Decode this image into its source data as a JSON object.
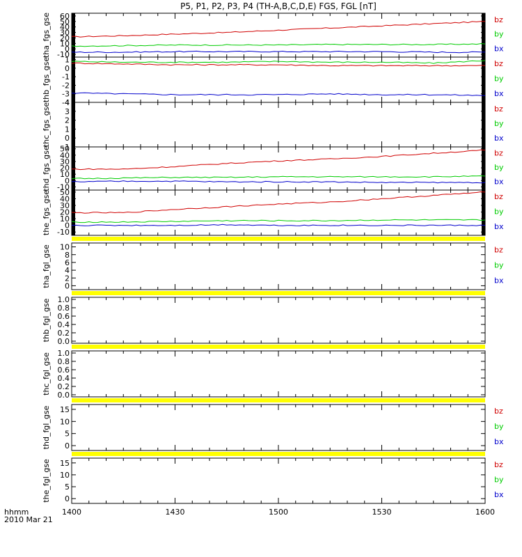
{
  "title": "P5, P1, P2, P3, P4 (TH-A,B,C,D,E) FGS, FGL [nT]",
  "time_axis": {
    "label_line1": "hhmm",
    "label_line2": "2010 Mar 21",
    "ticks": [
      "1400",
      "1430",
      "1500",
      "1530",
      "1600"
    ],
    "start": "14:00",
    "end": "16:00"
  },
  "colors": {
    "bz": "#d00000",
    "by": "#00cc00",
    "bx": "#0000cc",
    "gap_bar": "#ffff00",
    "frame": "#000000"
  },
  "chart_data": [
    {
      "type": "line",
      "panel": "tha_fgs_gse",
      "ylabel": "tha_fgs_gse",
      "ylim": [
        -15,
        65
      ],
      "yticks": [
        -10,
        0,
        10,
        20,
        30,
        40,
        50,
        60
      ],
      "x": [
        "14:00",
        "14:15",
        "14:30",
        "14:45",
        "15:00",
        "15:15",
        "15:30",
        "15:45",
        "16:00"
      ],
      "series": [
        {
          "name": "bz",
          "values": [
            22,
            24,
            27,
            30,
            34,
            38,
            42,
            46,
            50
          ]
        },
        {
          "name": "by",
          "values": [
            5,
            6,
            7,
            7,
            7,
            8,
            8,
            8,
            9
          ]
        },
        {
          "name": "bx",
          "values": [
            -6,
            -6,
            -5,
            -5,
            -5,
            -5,
            -5,
            -6,
            -6
          ]
        }
      ]
    },
    {
      "type": "line",
      "panel": "thb_fgs_gse",
      "ylabel": "thb_fgs_gse",
      "ylim": [
        -4,
        1.3
      ],
      "yticks": [
        -4,
        -3,
        -2,
        -1,
        0,
        1
      ],
      "x": [
        "14:00",
        "14:15",
        "14:30",
        "14:45",
        "15:00",
        "15:15",
        "15:30",
        "15:45",
        "16:00"
      ],
      "series": [
        {
          "name": "bz",
          "values": [
            0.6,
            0.5,
            0.4,
            0.4,
            0.4,
            0.3,
            0.3,
            0.3,
            0.3
          ]
        },
        {
          "name": "by",
          "values": [
            0.8,
            0.7,
            0.7,
            0.7,
            0.8,
            0.7,
            0.7,
            0.6,
            0.9
          ]
        },
        {
          "name": "bx",
          "values": [
            -2.9,
            -3.0,
            -3.1,
            -3.1,
            -3.1,
            -3.0,
            -3.1,
            -3.1,
            -3.2
          ]
        }
      ]
    },
    {
      "type": "line",
      "panel": "thc_fgs_gse",
      "ylabel": "thc_fgs_gse",
      "ylim": [
        -1,
        4
      ],
      "yticks": [
        -1,
        0,
        1,
        2,
        3,
        4
      ],
      "x": [],
      "series": [
        {
          "name": "bz",
          "values": []
        },
        {
          "name": "by",
          "values": []
        },
        {
          "name": "bx",
          "values": []
        }
      ]
    },
    {
      "type": "line",
      "panel": "thd_fgs_gse",
      "ylabel": "thd_fgs_gse",
      "ylim": [
        -15,
        53
      ],
      "yticks": [
        -10,
        0,
        10,
        20,
        30,
        40,
        50
      ],
      "x": [
        "14:00",
        "14:15",
        "14:30",
        "14:45",
        "15:00",
        "15:15",
        "15:30",
        "15:45",
        "16:00"
      ],
      "series": [
        {
          "name": "bz",
          "values": [
            18,
            18,
            22,
            27,
            31,
            34,
            38,
            43,
            48
          ]
        },
        {
          "name": "by",
          "values": [
            3,
            4,
            5,
            5,
            6,
            6,
            6,
            6,
            7
          ]
        },
        {
          "name": "bx",
          "values": [
            -2,
            -1,
            -1,
            -2,
            -2,
            -2,
            -3,
            -3,
            -3
          ]
        }
      ]
    },
    {
      "type": "line",
      "panel": "the_fgs_gse",
      "ylabel": "the_fgs_gse",
      "ylim": [
        -15,
        53
      ],
      "yticks": [
        -10,
        0,
        10,
        20,
        30,
        40,
        50
      ],
      "x": [
        "14:00",
        "14:15",
        "14:30",
        "14:45",
        "15:00",
        "15:15",
        "15:30",
        "15:45",
        "16:00"
      ],
      "series": [
        {
          "name": "bz",
          "values": [
            19,
            19,
            24,
            28,
            32,
            35,
            40,
            45,
            50
          ]
        },
        {
          "name": "by",
          "values": [
            5,
            5,
            6,
            7,
            7,
            7,
            8,
            8,
            8
          ]
        },
        {
          "name": "bx",
          "values": [
            0,
            0,
            0,
            1,
            0,
            0,
            0,
            0,
            0
          ]
        }
      ]
    },
    {
      "type": "line",
      "panel": "tha_fgl_gse",
      "ylabel": "tha_fgl_gse",
      "ylim": [
        -1,
        11
      ],
      "yticks": [
        0,
        2,
        4,
        6,
        8,
        10
      ],
      "x": [],
      "series": [
        {
          "name": "bz",
          "values": []
        },
        {
          "name": "by",
          "values": []
        },
        {
          "name": "bx",
          "values": []
        }
      ]
    },
    {
      "type": "line",
      "panel": "thb_fgl_gse",
      "ylabel": "thb_fgl_gse",
      "ylim": [
        -0.05,
        1.05
      ],
      "yticks": [
        "0.0",
        "0.2",
        "0.4",
        "0.6",
        "0.8",
        "1.0"
      ],
      "x": [],
      "series": []
    },
    {
      "type": "line",
      "panel": "thc_fgl_gse",
      "ylabel": "thc_fgl_gse",
      "ylim": [
        -0.05,
        1.05
      ],
      "yticks": [
        "0.0",
        "0.2",
        "0.4",
        "0.6",
        "0.8",
        "1.0"
      ],
      "x": [],
      "series": []
    },
    {
      "type": "line",
      "panel": "thd_fgl_gse",
      "ylabel": "thd_fgl_gse",
      "ylim": [
        -2,
        17
      ],
      "yticks": [
        0,
        5,
        10,
        15
      ],
      "x": [],
      "series": [
        {
          "name": "bz",
          "values": []
        },
        {
          "name": "by",
          "values": []
        },
        {
          "name": "bx",
          "values": []
        }
      ]
    },
    {
      "type": "line",
      "panel": "the_fgl_gse",
      "ylabel": "the_fgl_gse",
      "ylim": [
        -2,
        17
      ],
      "yticks": [
        0,
        5,
        10,
        15
      ],
      "x": [],
      "series": [
        {
          "name": "bz",
          "values": []
        },
        {
          "name": "by",
          "values": []
        },
        {
          "name": "bx",
          "values": []
        }
      ]
    }
  ]
}
